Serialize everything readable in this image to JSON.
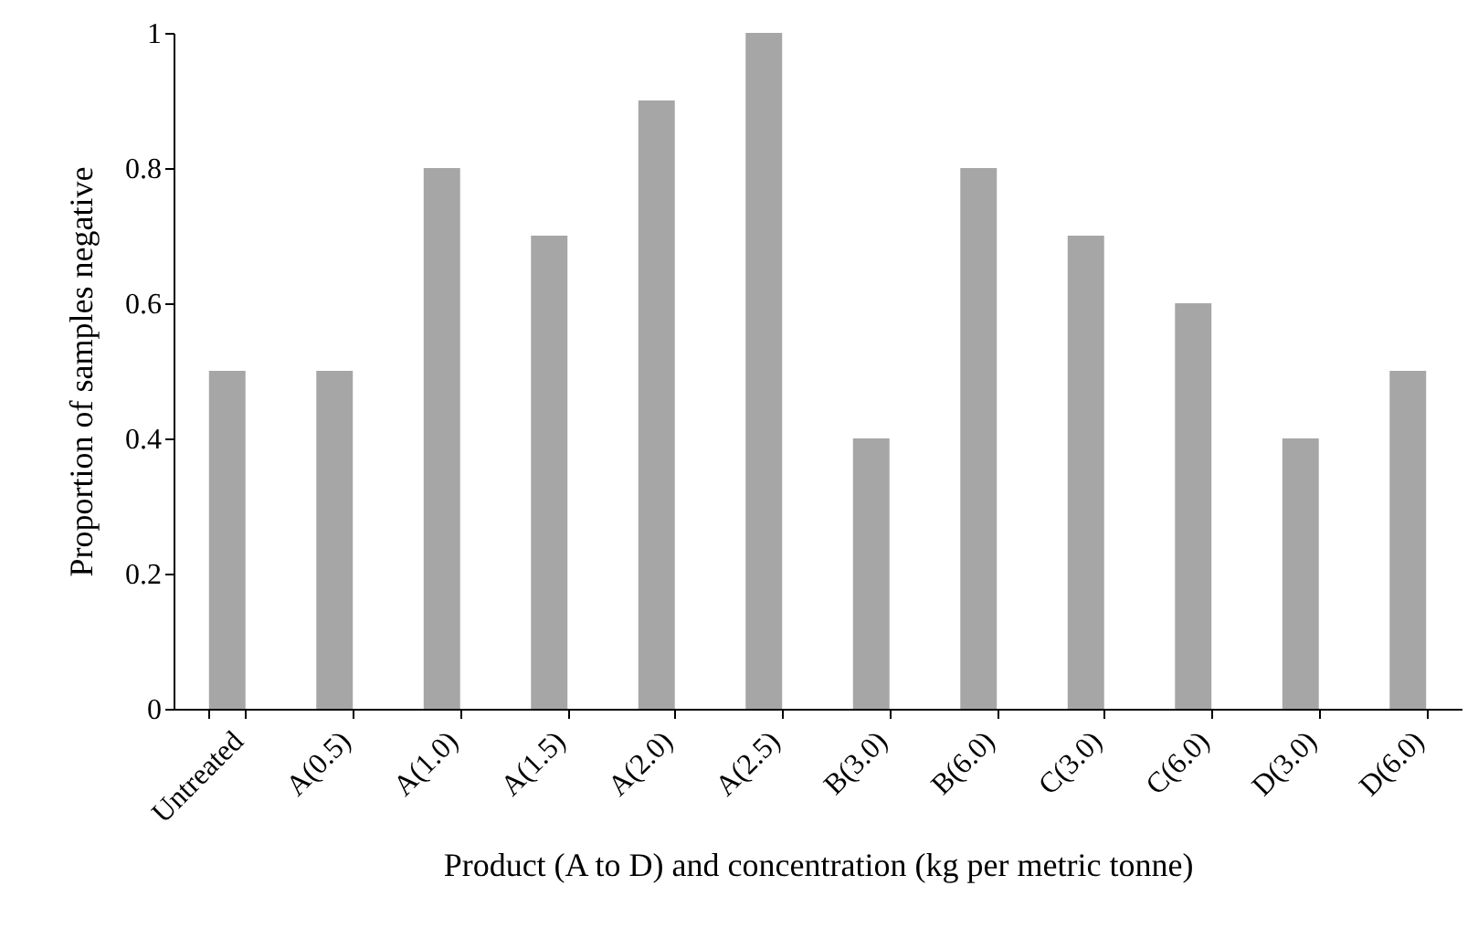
{
  "chart_data": {
    "type": "bar",
    "xlabel": "Product (A to D) and concentration (kg per metric tonne)",
    "ylabel": "Proportion of samples negative",
    "categories": [
      "Untreated",
      "A(0.5)",
      "A(1.0)",
      "A(1.5)",
      "A(2.0)",
      "A(2.5)",
      "B(3.0)",
      "B(6.0)",
      "C(3.0)",
      "C(6.0)",
      "D(3.0)",
      "D(6.0)"
    ],
    "values": [
      0.5,
      0.5,
      0.8,
      0.7,
      0.9,
      1.0,
      0.4,
      0.8,
      0.7,
      0.6,
      0.4,
      0.5
    ],
    "color": "#a6a6a6",
    "ylim": [
      0,
      1
    ],
    "yticks": [
      0,
      0.2,
      0.4,
      0.6,
      0.8,
      1
    ],
    "grid": false
  }
}
